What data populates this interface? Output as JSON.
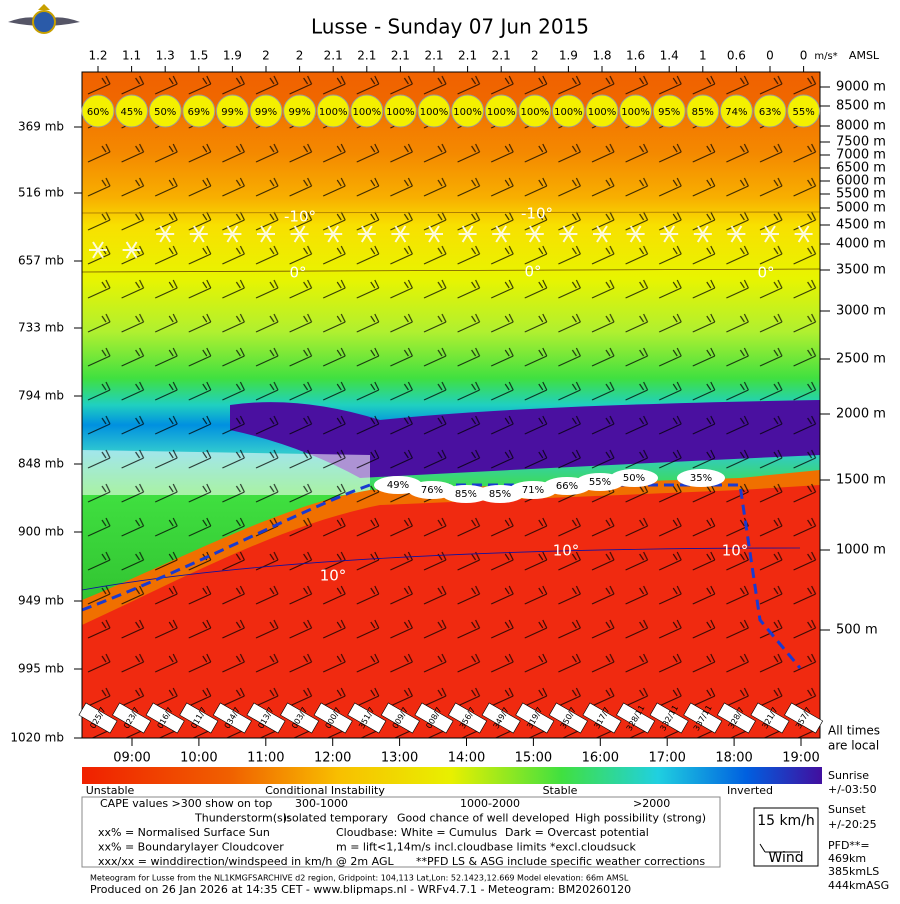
{
  "chart_data": {
    "type": "meteogram",
    "title": "Lusse - Sunday 07 Jun 2015",
    "top_unit": "m/s*",
    "right_unit": "AMSL",
    "thermal_strength": [
      "1.2",
      "1.1",
      "1.3",
      "1.5",
      "1.9",
      "2",
      "2",
      "2.1",
      "2.1",
      "2.1",
      "2.1",
      "2.1",
      "2.1",
      "2",
      "1.9",
      "1.8",
      "1.6",
      "1.4",
      "1",
      "0.6",
      "0",
      "0"
    ],
    "surface_sun": [
      "60%",
      "45%",
      "50%",
      "69%",
      "99%",
      "99%",
      "99%",
      "100%",
      "100%",
      "100%",
      "100%",
      "100%",
      "100%",
      "100%",
      "100%",
      "100%",
      "100%",
      "95%",
      "85%",
      "74%",
      "63%",
      "55%"
    ],
    "wind": [
      "025/7",
      "023/7",
      "016/7",
      "011/7",
      "034/7",
      "013/7",
      "003/7",
      "000/7",
      "351/7",
      "009/7",
      "008/7",
      "356/7",
      "349/7",
      "319/7",
      "350/7",
      "317/7",
      "328/11",
      "332/11",
      "337/11",
      "328/7",
      "321/7",
      "357/7"
    ],
    "pressure_labels": [
      "369 mb",
      "516 mb",
      "657 mb",
      "733 mb",
      "794 mb",
      "848 mb",
      "900 mb",
      "949 mb",
      "995 mb",
      "1020 mb"
    ],
    "altitude_labels": [
      "9000 m",
      "8500 m",
      "8000 m",
      "7500 m",
      "7000 m",
      "6500 m",
      "6000 m",
      "5500 m",
      "5000 m",
      "4500 m",
      "4000 m",
      "3500 m",
      "3000 m",
      "2500 m",
      "2000 m",
      "1500 m",
      "1000 m",
      "500 m"
    ],
    "times": [
      "09:00",
      "10:00",
      "11:00",
      "12:00",
      "13:00",
      "14:00",
      "15:00",
      "16:00",
      "17:00",
      "18:00",
      "19:00"
    ],
    "cloudcover": [
      "49%",
      "76%",
      "85%",
      "85%",
      "71%",
      "66%",
      "55%",
      "50%",
      "35%"
    ],
    "isotherms": [
      "-10°",
      "-10°",
      "0°",
      "0°",
      "0°",
      "10°",
      "10°",
      "10°"
    ],
    "note_times": [
      "All times",
      "are local"
    ],
    "sunrise": [
      "Sunrise",
      "+/-03:50"
    ],
    "sunset": [
      "Sunset",
      "+/-20:25"
    ],
    "pfd": [
      "PFD**=",
      "469km",
      "385kmLS",
      "444kmASG"
    ],
    "wind_key": [
      "15 km/h",
      "Wind"
    ],
    "scale_labels": [
      "Unstable",
      "Conditional Instability",
      "Stable",
      "Inverted"
    ],
    "legend": [
      [
        "CAPE values >300 show on top",
        "300-1000",
        "1000-2000",
        ">2000"
      ],
      [
        "Thunderstorm(s):",
        "Isolated temporary",
        "Good chance of well developed",
        "High possibility (strong)"
      ],
      [
        "xx% = Normalised Surface Sun",
        "Cloudbase: White = Cumulus",
        "Dark = Overcast potential"
      ],
      [
        "xx% = Boundarylayer Cloudcover",
        "m = lift<1,14m/s incl.cloudbase limits *excl.cloudsuck"
      ],
      [
        "xxx/xx = winddirection/windspeed in km/h @ 2m AGL",
        "**PFD LS & ASG include specific weather corrections"
      ]
    ],
    "model_note": "Meteogram for Lusse from the NL1KMGFSARCHIVE d2 region, Gridpoint: 104,113 Lat,Lon: 52.1423,12.669 Model elevation: 66m AMSL",
    "footer": "Produced on 26 Jan 2026 at 14:35 CET - www.blipmaps.nl - WRFv4.7.1 - Meteogram: BM20260120"
  }
}
